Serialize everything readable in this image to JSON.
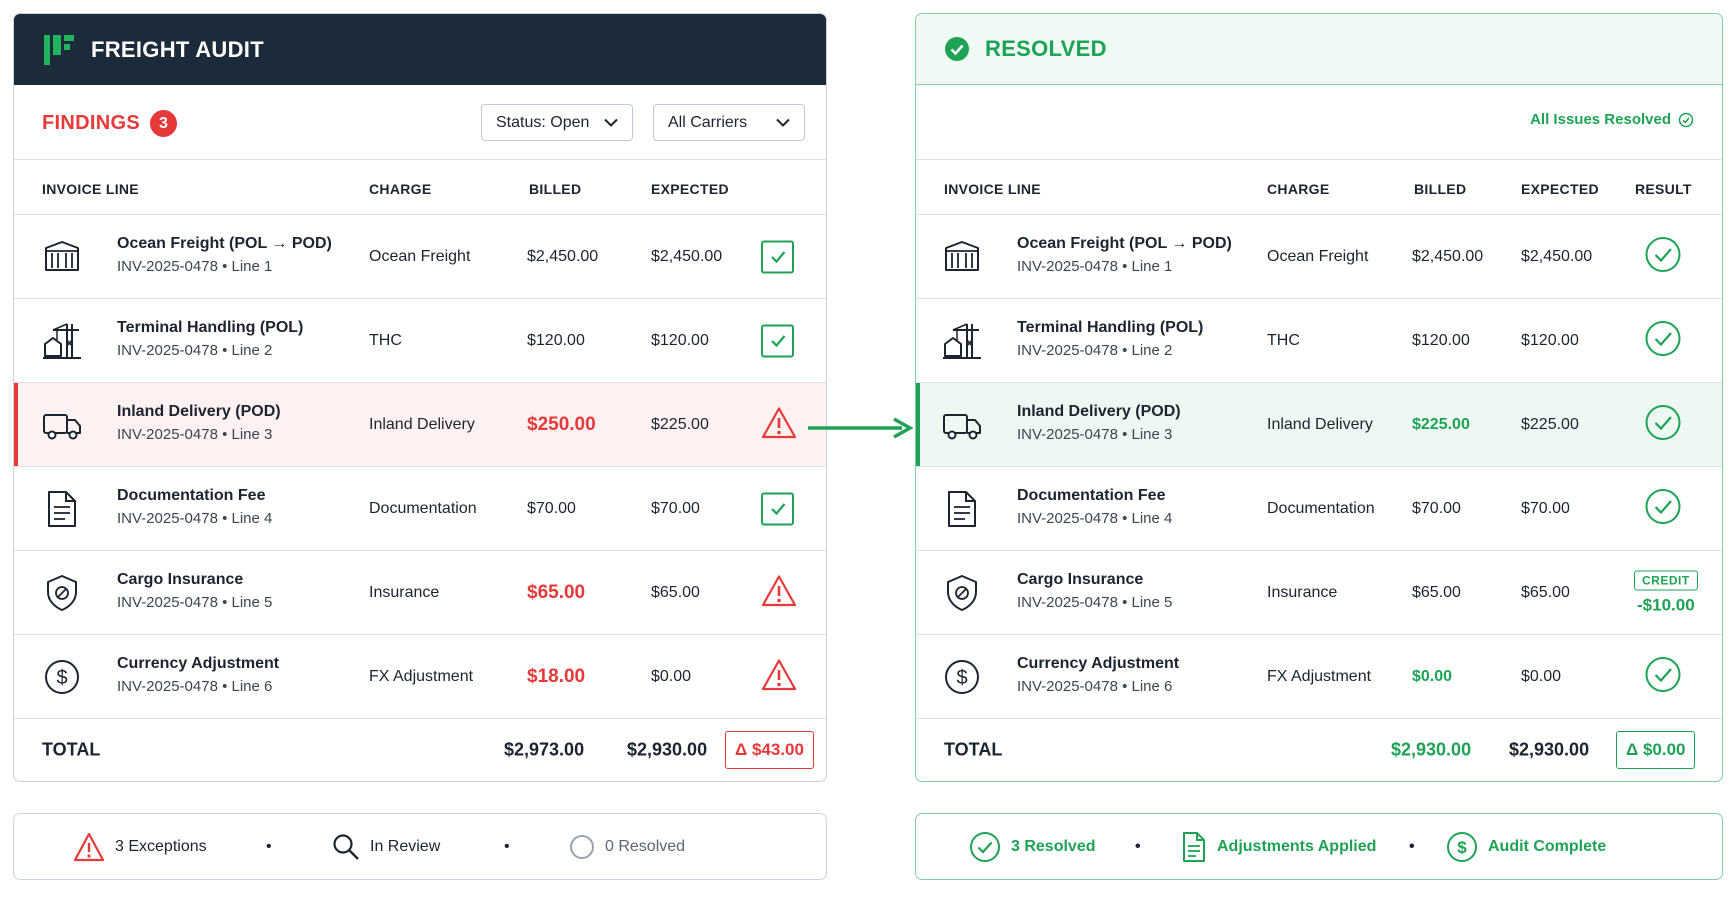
{
  "left": {
    "title": "FREIGHT AUDIT",
    "findings_label": "FINDINGS",
    "findings_count": "3",
    "status_filter": "Status: Open",
    "carrier_filter": "All Carriers",
    "columns": {
      "line": "INVOICE LINE",
      "charge": "CHARGE",
      "billed": "BILLED",
      "expected": "EXPECTED"
    },
    "rows": [
      {
        "icon": "container-icon",
        "title": "Ocean Freight (POL → POD)",
        "sub": "INV-2025-0478  •  Line 1",
        "charge": "Ocean Freight",
        "billed": "$2,450.00",
        "expected": "$2,450.00",
        "status": "ok"
      },
      {
        "icon": "crane-icon",
        "title": "Terminal Handling (POL)",
        "sub": "INV-2025-0478  •  Line 2",
        "charge": "THC",
        "billed": "$120.00",
        "expected": "$120.00",
        "status": "ok"
      },
      {
        "icon": "truck-icon",
        "title": "Inland Delivery (POD)",
        "sub": "INV-2025-0478  •  Line 3",
        "charge": "Inland Delivery",
        "billed": "$250.00",
        "expected": "$225.00",
        "status": "exception"
      },
      {
        "icon": "document-icon",
        "title": "Documentation Fee",
        "sub": "INV-2025-0478  •  Line 4",
        "charge": "Documentation",
        "billed": "$70.00",
        "expected": "$70.00",
        "status": "ok"
      },
      {
        "icon": "shield-icon",
        "title": "Cargo Insurance",
        "sub": "INV-2025-0478  •  Line 5",
        "charge": "Insurance",
        "billed": "$65.00",
        "expected": "$65.00",
        "status": "exception"
      },
      {
        "icon": "dollar-icon",
        "title": "Currency Adjustment",
        "sub": "INV-2025-0478  •  Line 6",
        "charge": "FX Adjustment",
        "billed": "$18.00",
        "expected": "$0.00",
        "status": "exception"
      }
    ],
    "total": {
      "label": "TOTAL",
      "billed": "$2,973.00",
      "expected": "$2,930.00",
      "delta": "Δ $43.00"
    },
    "footer": {
      "exceptions": "3 Exceptions",
      "review": "In Review",
      "resolved": "0 Resolved"
    }
  },
  "right": {
    "title": "RESOLVED",
    "status_note": "All Issues Resolved",
    "columns": {
      "line": "INVOICE LINE",
      "charge": "CHARGE",
      "billed": "BILLED",
      "expected": "EXPECTED",
      "result": "RESULT"
    },
    "rows": [
      {
        "icon": "container-icon",
        "title": "Ocean Freight (POL → POD)",
        "sub": "INV-2025-0478  •  Line 1",
        "charge": "Ocean Freight",
        "billed": "$2,450.00",
        "expected": "$2,450.00",
        "result": "check"
      },
      {
        "icon": "crane-icon",
        "title": "Terminal Handling (POL)",
        "sub": "INV-2025-0478  •  Line 2",
        "charge": "THC",
        "billed": "$120.00",
        "expected": "$120.00",
        "result": "check"
      },
      {
        "icon": "truck-icon",
        "title": "Inland Delivery (POD)",
        "sub": "INV-2025-0478  •  Line 3",
        "charge": "Inland Delivery",
        "billed": "$225.00",
        "expected": "$225.00",
        "result": "check"
      },
      {
        "icon": "document-icon",
        "title": "Documentation Fee",
        "sub": "INV-2025-0478  •  Line 4",
        "charge": "Documentation",
        "billed": "$70.00",
        "expected": "$70.00",
        "result": "check"
      },
      {
        "icon": "shield-icon",
        "title": "Cargo Insurance",
        "sub": "INV-2025-0478  •  Line 5",
        "charge": "Insurance",
        "billed": "$65.00",
        "expected": "$65.00",
        "result": "credit",
        "credit_label": "CREDIT",
        "credit_amount": "-$10.00"
      },
      {
        "icon": "dollar-icon",
        "title": "Currency Adjustment",
        "sub": "INV-2025-0478  •  Line 6",
        "charge": "FX Adjustment",
        "billed": "$0.00",
        "expected": "$0.00",
        "result": "check"
      }
    ],
    "total": {
      "label": "TOTAL",
      "billed": "$2,930.00",
      "expected": "$2,930.00",
      "delta": "Δ $0.00"
    },
    "footer": {
      "resolved": "3 Resolved",
      "adjustments": "Adjustments Applied",
      "complete": "Audit Complete"
    }
  },
  "colors": {
    "navy": "#1c2b3a",
    "red": "#e63939",
    "green": "#1ea356",
    "logo_green": "#22b35e"
  }
}
